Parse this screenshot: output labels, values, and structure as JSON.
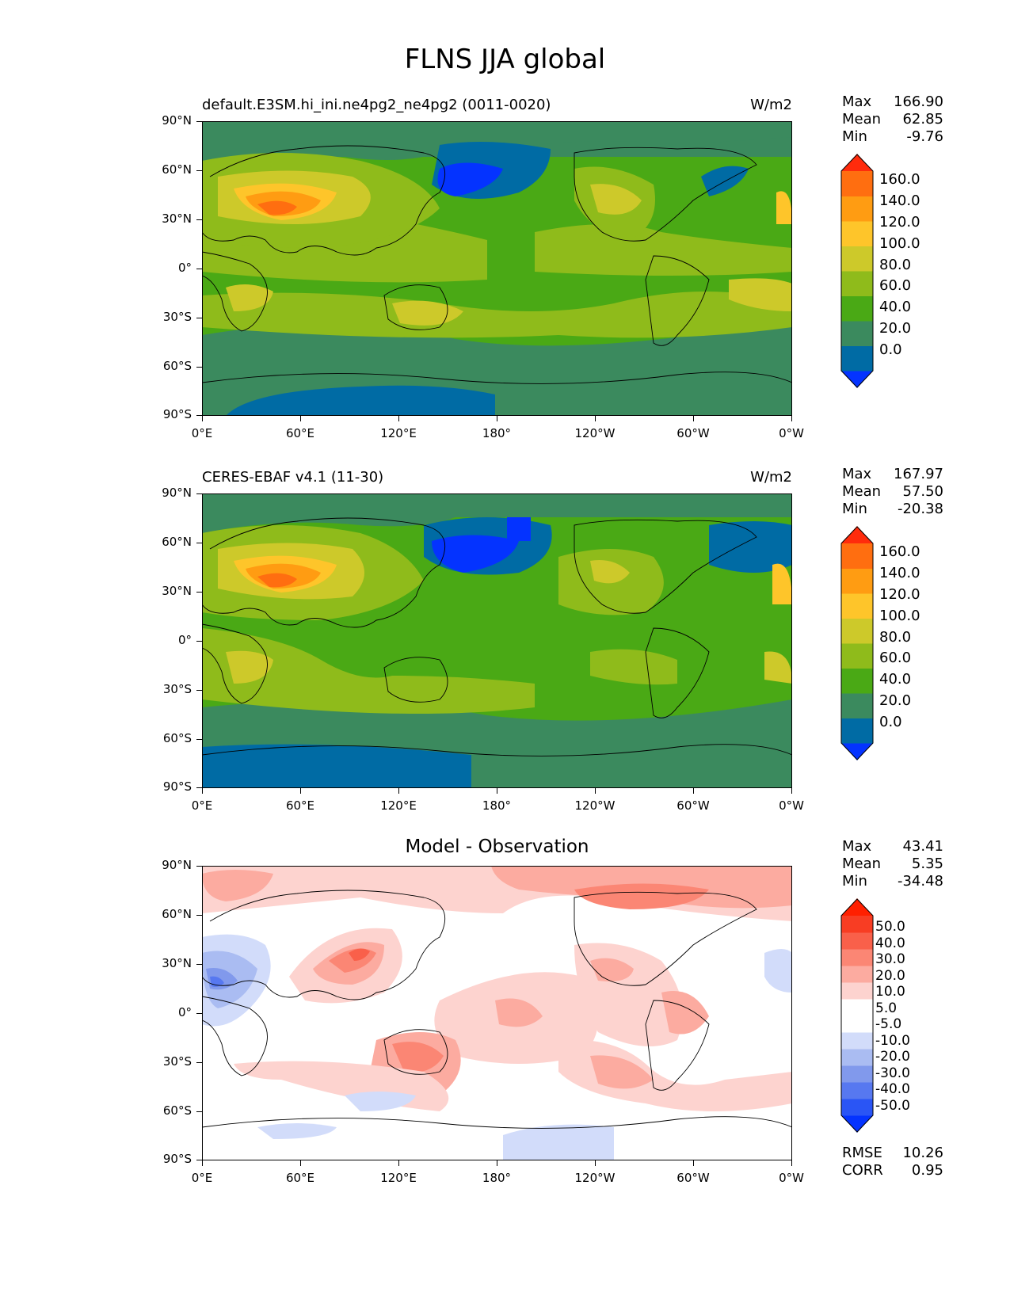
{
  "figure": {
    "title": "FLNS JJA global"
  },
  "axes": {
    "lat_ticks": [
      "90°N",
      "60°N",
      "30°N",
      "0°",
      "30°S",
      "60°S",
      "90°S"
    ],
    "lon_ticks": [
      "0°E",
      "60°E",
      "120°E",
      "180°",
      "120°W",
      "60°W",
      "0°W"
    ]
  },
  "panels": [
    {
      "id": "test",
      "title_left": "default.E3SM.hi_ini.ne4pg2_ne4pg2 (0011-0020)",
      "title_right": "W/m2",
      "stats": {
        "max_label": "Max",
        "max": "166.90",
        "mean_label": "Mean",
        "mean": "62.85",
        "min_label": "Min",
        "min": "-9.76"
      },
      "colorbar": {
        "levels": [
          "160.0",
          "140.0",
          "120.0",
          "100.0",
          "80.0",
          "60.0",
          "40.0",
          "20.0",
          "0.0"
        ],
        "colors": [
          "#0433ff",
          "#006ba4",
          "#3b8a5e",
          "#4aa915",
          "#8fbb1b",
          "#cdc92a",
          "#fec52a",
          "#ff9c12",
          "#ff6e10",
          "#ff2b0c"
        ]
      }
    },
    {
      "id": "reference",
      "title_left": "CERES-EBAF v4.1 (11-30)",
      "title_right": "W/m2",
      "stats": {
        "max_label": "Max",
        "max": "167.97",
        "mean_label": "Mean",
        "mean": "57.50",
        "min_label": "Min",
        "min": "-20.38"
      },
      "colorbar": {
        "levels": [
          "160.0",
          "140.0",
          "120.0",
          "100.0",
          "80.0",
          "60.0",
          "40.0",
          "20.0",
          "0.0"
        ],
        "colors": [
          "#0433ff",
          "#006ba4",
          "#3b8a5e",
          "#4aa915",
          "#8fbb1b",
          "#cdc92a",
          "#fec52a",
          "#ff9c12",
          "#ff6e10",
          "#ff2b0c"
        ]
      }
    },
    {
      "id": "diff",
      "title_center": "Model - Observation",
      "stats": {
        "max_label": "Max",
        "max": "43.41",
        "mean_label": "Mean",
        "mean": "5.35",
        "min_label": "Min",
        "min": "-34.48"
      },
      "colorbar": {
        "levels": [
          "50.0",
          "40.0",
          "30.0",
          "20.0",
          "10.0",
          "5.0",
          "-5.0",
          "-10.0",
          "-20.0",
          "-30.0",
          "-40.0",
          "-50.0"
        ],
        "colors": [
          "#0433ff",
          "#2a55f5",
          "#5778f0",
          "#8199ec",
          "#aabcf2",
          "#d2dcfa",
          "#ffffff",
          "#ffffff",
          "#fdd3cf",
          "#fcaba0",
          "#fb8674",
          "#f9604a",
          "#f83d23",
          "#ff2000"
        ]
      },
      "metrics": {
        "rmse_label": "RMSE",
        "rmse": "10.26",
        "corr_label": "CORR",
        "corr": "0.95"
      }
    }
  ]
}
